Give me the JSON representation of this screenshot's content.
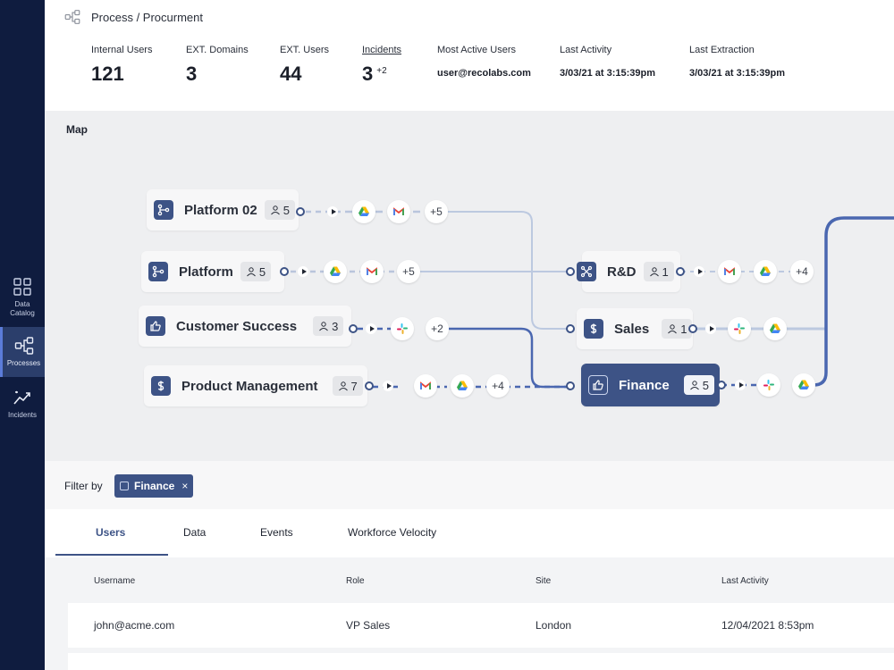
{
  "sidebar": {
    "items": [
      {
        "label": "Data\nCatalog",
        "icon": "grid-icon"
      },
      {
        "label": "Processes",
        "icon": "process-icon",
        "active": true
      },
      {
        "label": "Incidents",
        "icon": "trend-icon"
      }
    ]
  },
  "header": {
    "breadcrumb": "Process / Procurment",
    "stats": [
      {
        "label": "Internal Users",
        "value": "121"
      },
      {
        "label": "EXT. Domains",
        "value": "3"
      },
      {
        "label": "EXT. Users",
        "value": "44"
      },
      {
        "label": "Incidents",
        "value": "3",
        "extra": "+2"
      },
      {
        "label": "Most Active Users",
        "value": "user@recolabs.com"
      },
      {
        "label": "Last Activity",
        "value": "3/03/21 at 3:15:39pm"
      },
      {
        "label": "Last Extraction",
        "value": "3/03/21 at 3:15:39pm"
      }
    ]
  },
  "map": {
    "title": "Map",
    "sources": [
      {
        "label": "Platform 02",
        "count": "5",
        "icon": "branch-icon",
        "more": "+5"
      },
      {
        "label": "Platform",
        "count": "5",
        "icon": "branch-icon",
        "more": "+5"
      },
      {
        "label": "Customer Success",
        "count": "3",
        "icon": "thumbs-up-icon",
        "more": "+2"
      },
      {
        "label": "Product Management",
        "count": "7",
        "icon": "dollar-icon",
        "more": "+4"
      }
    ],
    "targets": [
      {
        "label": "R&D",
        "count": "1",
        "icon": "shuffle-icon",
        "more": "+4"
      },
      {
        "label": "Sales",
        "count": "1",
        "icon": "dollar-icon"
      },
      {
        "label": "Finance",
        "count": "5",
        "icon": "thumbs-up-icon",
        "active": true
      }
    ]
  },
  "filter": {
    "label": "Filter by",
    "chip": "Finance",
    "chip_close": "×"
  },
  "tabs": [
    {
      "label": "Users",
      "active": true
    },
    {
      "label": "Data"
    },
    {
      "label": "Events"
    },
    {
      "label": "Workforce Velocity"
    }
  ],
  "table": {
    "columns": [
      "Username",
      "Role",
      "Site",
      "Last Activity"
    ],
    "rows": [
      [
        "john@acme.com",
        "VP Sales",
        "London",
        "12/04/2021 8:53pm"
      ]
    ]
  },
  "colors": {
    "sidebar": "#0f1c3f",
    "accent": "#3d5386",
    "map_bg": "#eeeff1"
  }
}
